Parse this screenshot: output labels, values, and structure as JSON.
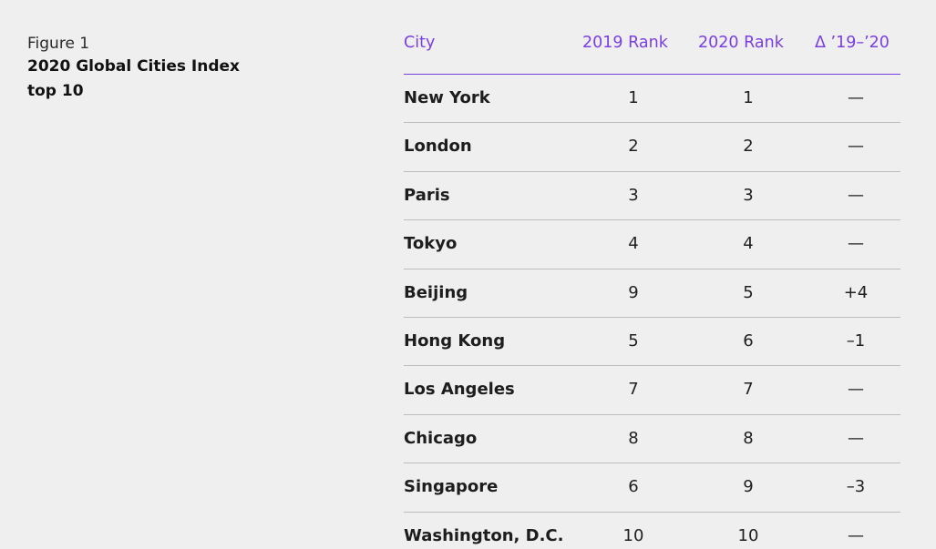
{
  "figure": {
    "label": "Figure 1",
    "title": "2020 Global Cities Index\ntop 10"
  },
  "colors": {
    "accent": "#7a3fe0",
    "background": "#efefef",
    "divider": "#bdbdbd"
  },
  "chart_data": {
    "type": "table",
    "title": "2020 Global Cities Index top 10",
    "columns": [
      "City",
      "2019 Rank",
      "2020 Rank",
      "Δ ’19–’20"
    ],
    "rows": [
      [
        "New York",
        "1",
        "1",
        "—"
      ],
      [
        "London",
        "2",
        "2",
        "—"
      ],
      [
        "Paris",
        "3",
        "3",
        "—"
      ],
      [
        "Tokyo",
        "4",
        "4",
        "—"
      ],
      [
        "Beijing",
        "9",
        "5",
        "+4"
      ],
      [
        "Hong Kong",
        "5",
        "6",
        "–1"
      ],
      [
        "Los Angeles",
        "7",
        "7",
        "—"
      ],
      [
        "Chicago",
        "8",
        "8",
        "—"
      ],
      [
        "Singapore",
        "6",
        "9",
        "–3"
      ],
      [
        "Washington, D.C.",
        "10",
        "10",
        "—"
      ]
    ]
  }
}
